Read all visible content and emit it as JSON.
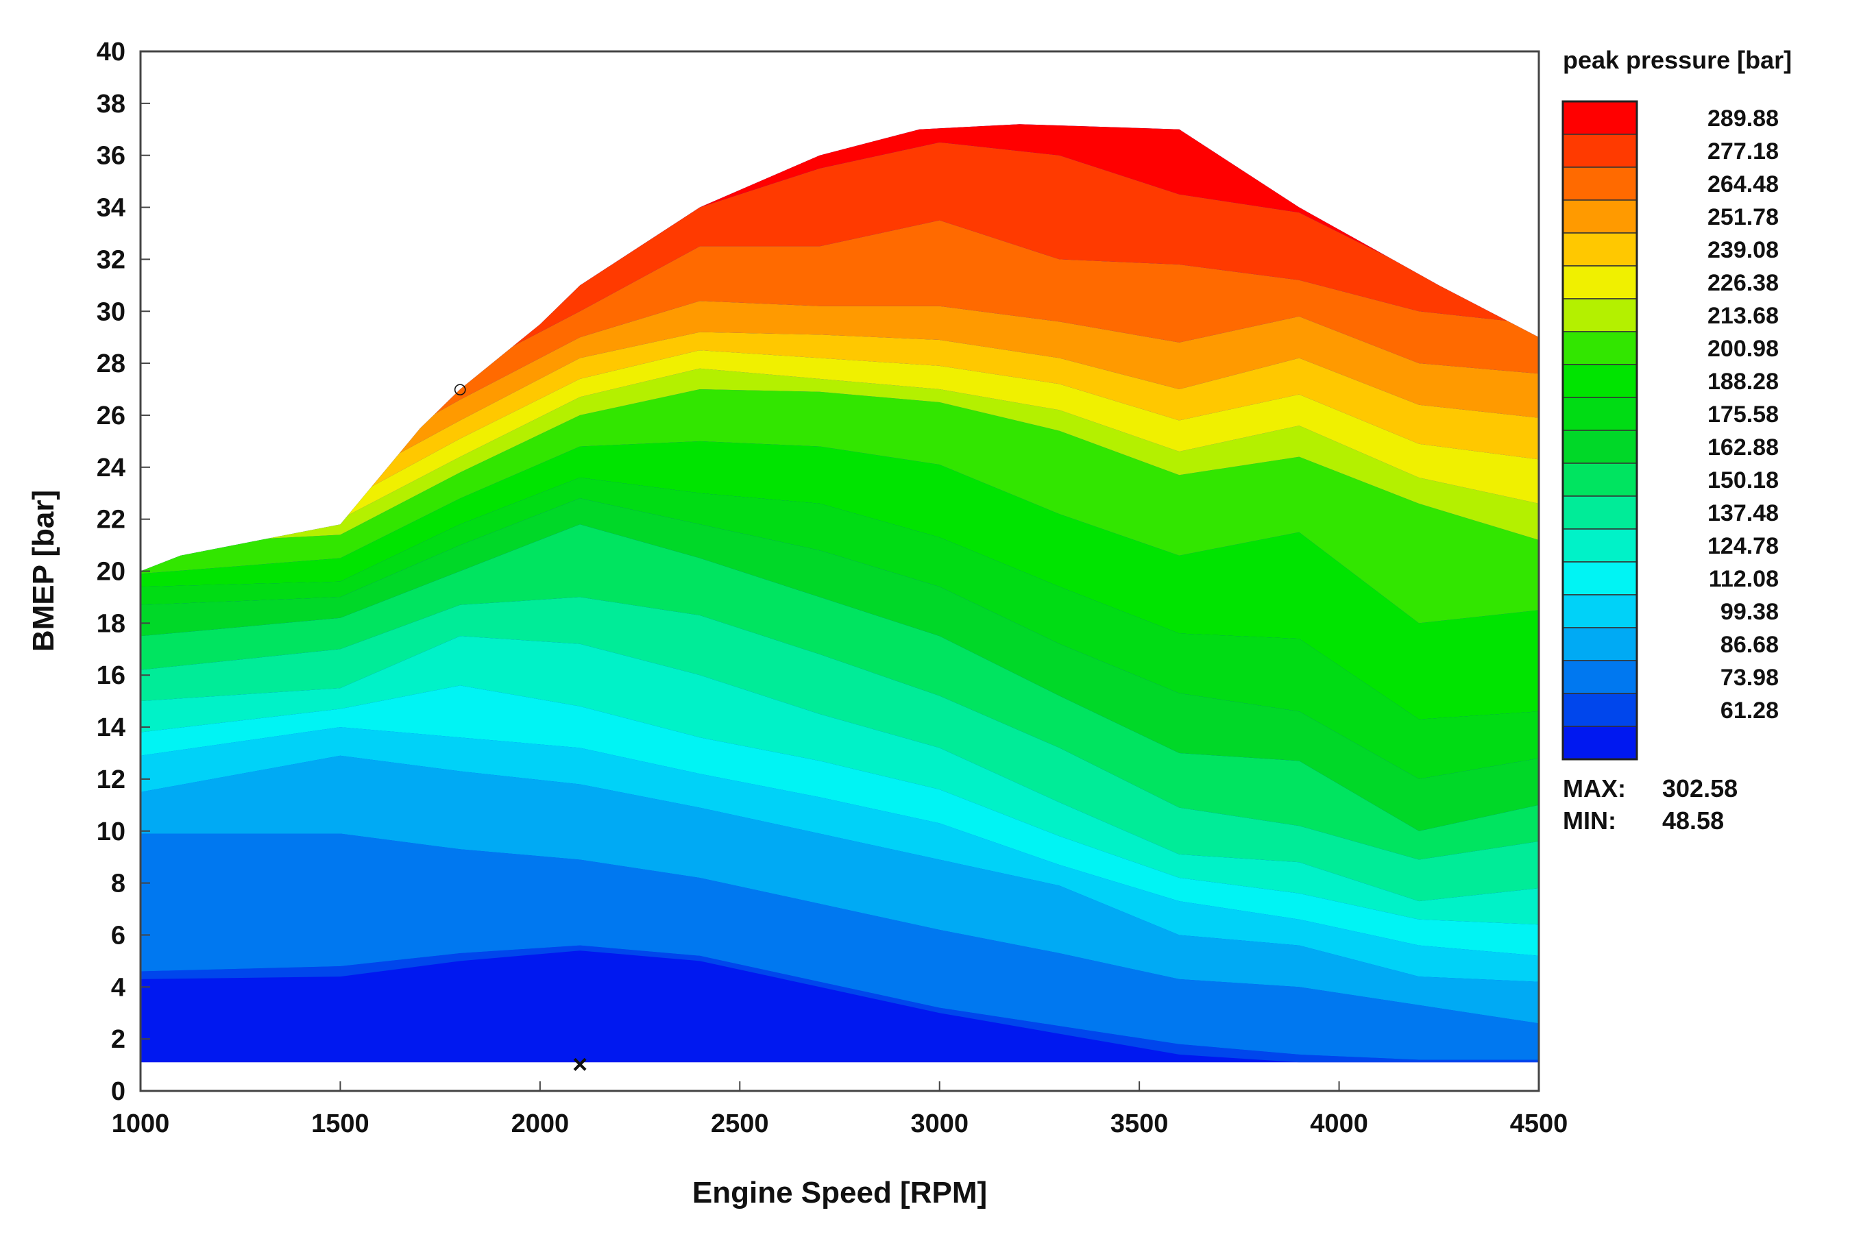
{
  "chart_data": {
    "type": "heatmap",
    "subtype": "filled-contour",
    "xlabel": "Engine Speed [RPM]",
    "ylabel": "BMEP [bar]",
    "xlim": [
      1000,
      4500
    ],
    "ylim": [
      0,
      40
    ],
    "x_ticks": [
      1000,
      1500,
      2000,
      2500,
      3000,
      3500,
      4000,
      4500
    ],
    "y_ticks": [
      0,
      2,
      4,
      6,
      8,
      10,
      12,
      14,
      16,
      18,
      20,
      22,
      24,
      26,
      28,
      30,
      32,
      34,
      36,
      38,
      40
    ],
    "colorbar": {
      "title": "peak pressure [bar]",
      "levels": [
        "289.88",
        "277.18",
        "264.48",
        "251.78",
        "239.08",
        "226.38",
        "213.68",
        "200.98",
        "188.28",
        "175.58",
        "162.88",
        "150.18",
        "137.48",
        "124.78",
        "112.08",
        "99.38",
        "86.68",
        "73.98",
        "61.28"
      ],
      "colors": [
        "#ff0000",
        "#ff3a00",
        "#ff6a00",
        "#ff9a00",
        "#ffc800",
        "#f0f000",
        "#b4f000",
        "#32e600",
        "#00e400",
        "#00dc14",
        "#00d828",
        "#00e460",
        "#00ec98",
        "#00f2c8",
        "#00f4f4",
        "#00d2f8",
        "#00aaf4",
        "#0078f0",
        "#0046ec",
        "#0018f0"
      ],
      "max_label": "MAX:",
      "max_value": "302.58",
      "min_label": "MIN:",
      "min_value": "48.58"
    },
    "max_pressure_curve": {
      "x": [
        1000,
        1100,
        1300,
        1500,
        1700,
        1800,
        2000,
        2100,
        2400,
        2700,
        2950,
        3200,
        3600,
        3900,
        4250,
        4500
      ],
      "y": [
        20.0,
        20.6,
        21.2,
        21.8,
        25.5,
        27.0,
        29.5,
        31.0,
        34.0,
        36.0,
        37.0,
        37.2,
        37.0,
        34.0,
        31.0,
        29.0
      ]
    },
    "min_load_line": 1.1,
    "markers": [
      {
        "symbol": "○",
        "x": 1800,
        "y": 27.0
      },
      {
        "symbol": "×",
        "x": 2100,
        "y": 1.0
      }
    ]
  }
}
